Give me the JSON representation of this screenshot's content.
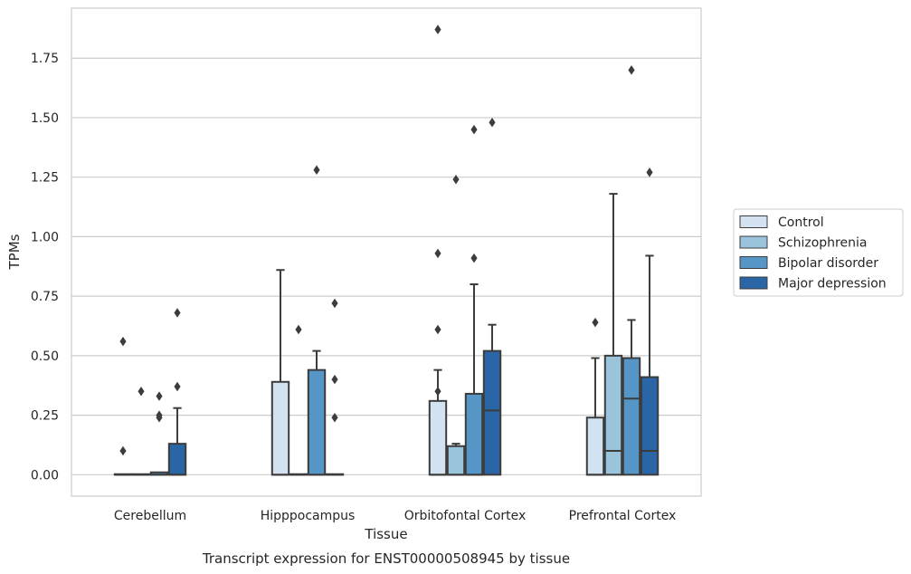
{
  "chart_data": {
    "type": "box",
    "title": "",
    "caption": "Transcript expression for ENST00000508945 by tissue",
    "xlabel": "Tissue",
    "ylabel": "TPMs",
    "ylim": [
      -0.09,
      1.96
    ],
    "yticks": [
      "0.00",
      "0.25",
      "0.50",
      "0.75",
      "1.00",
      "1.25",
      "1.50",
      "1.75"
    ],
    "ytick_values": [
      0,
      0.25,
      0.5,
      0.75,
      1.0,
      1.25,
      1.5,
      1.75
    ],
    "grid": "horizontal",
    "legend_position": "right",
    "categories": [
      "Cerebellum",
      "Hipppocampus",
      "Orbitofontal Cortex",
      "Prefrontal Cortex"
    ],
    "series": [
      {
        "name": "Control",
        "color": "#d3e2f0",
        "boxes": [
          {
            "q1": 0,
            "median": 0,
            "q3": 0,
            "whisker_low": 0,
            "whisker_high": 0,
            "outliers": [
              0.56,
              0.1
            ]
          },
          {
            "q1": 0,
            "median": 0,
            "q3": 0.39,
            "whisker_low": 0,
            "whisker_high": 0.86,
            "outliers": []
          },
          {
            "q1": 0,
            "median": 0,
            "q3": 0.31,
            "whisker_low": 0,
            "whisker_high": 0.44,
            "outliers": [
              1.87,
              0.93,
              0.61,
              0.35
            ]
          },
          {
            "q1": 0,
            "median": 0,
            "q3": 0.24,
            "whisker_low": 0,
            "whisker_high": 0.49,
            "outliers": [
              0.64
            ]
          }
        ]
      },
      {
        "name": "Schizophrenia",
        "color": "#9ac3dc",
        "boxes": [
          {
            "q1": 0,
            "median": 0,
            "q3": 0,
            "whisker_low": 0,
            "whisker_high": 0,
            "outliers": [
              0.35
            ]
          },
          {
            "q1": 0,
            "median": 0,
            "q3": 0,
            "whisker_low": 0,
            "whisker_high": 0,
            "outliers": [
              0.61
            ]
          },
          {
            "q1": 0,
            "median": 0,
            "q3": 0.12,
            "whisker_low": 0,
            "whisker_high": 0.13,
            "outliers": [
              1.24
            ]
          },
          {
            "q1": 0,
            "median": 0.1,
            "q3": 0.5,
            "whisker_low": 0,
            "whisker_high": 1.18,
            "outliers": []
          }
        ]
      },
      {
        "name": "Bipolar disorder",
        "color": "#5696c6",
        "boxes": [
          {
            "q1": 0,
            "median": 0,
            "q3": 0.01,
            "whisker_low": 0,
            "whisker_high": 0.01,
            "outliers": [
              0.33,
              0.25,
              0.24
            ]
          },
          {
            "q1": 0,
            "median": 0,
            "q3": 0.44,
            "whisker_low": 0,
            "whisker_high": 0.52,
            "outliers": [
              1.28
            ]
          },
          {
            "q1": 0,
            "median": 0,
            "q3": 0.34,
            "whisker_low": 0,
            "whisker_high": 0.8,
            "outliers": [
              1.45,
              0.91
            ]
          },
          {
            "q1": 0,
            "median": 0.32,
            "q3": 0.49,
            "whisker_low": 0,
            "whisker_high": 0.65,
            "outliers": [
              1.7
            ]
          }
        ]
      },
      {
        "name": "Major depression",
        "color": "#2a66a6",
        "boxes": [
          {
            "q1": 0,
            "median": 0,
            "q3": 0.13,
            "whisker_low": 0,
            "whisker_high": 0.28,
            "outliers": [
              0.68,
              0.37
            ]
          },
          {
            "q1": 0,
            "median": 0,
            "q3": 0,
            "whisker_low": 0,
            "whisker_high": 0,
            "outliers": [
              0.72,
              0.4,
              0.24
            ]
          },
          {
            "q1": 0,
            "median": 0.27,
            "q3": 0.52,
            "whisker_low": 0,
            "whisker_high": 0.63,
            "outliers": [
              1.48
            ]
          },
          {
            "q1": 0,
            "median": 0.1,
            "q3": 0.41,
            "whisker_low": 0,
            "whisker_high": 0.92,
            "outliers": [
              1.27
            ]
          }
        ]
      }
    ]
  }
}
